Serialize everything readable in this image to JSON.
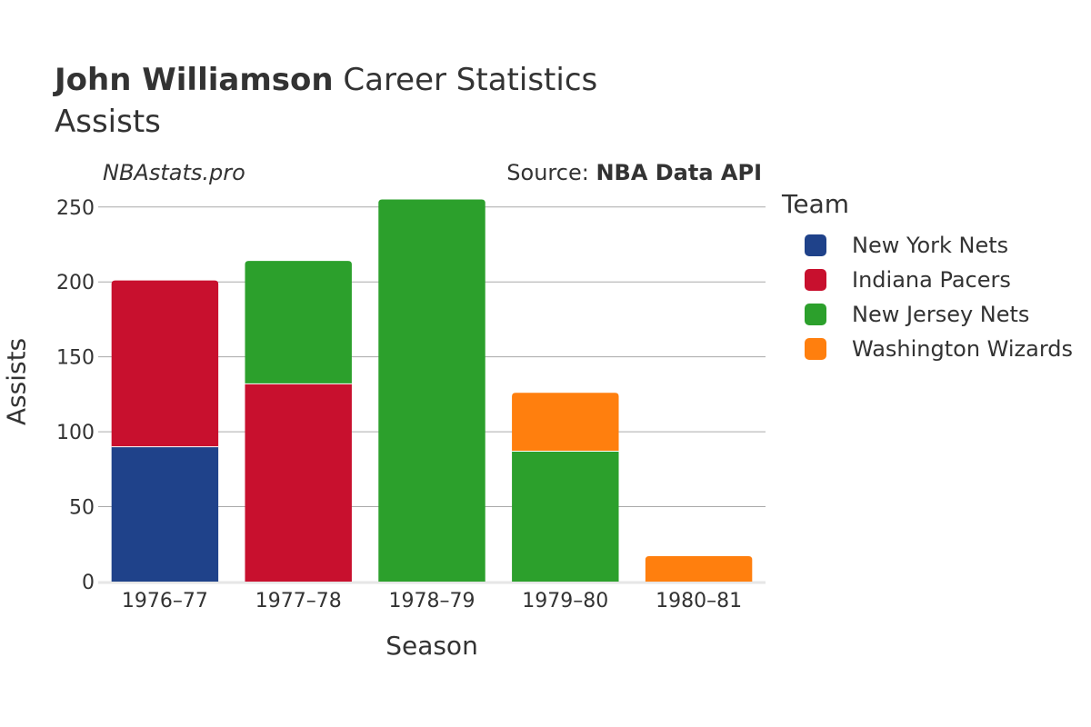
{
  "header": {
    "title_bold": "John Williamson",
    "title_rest": " Career Statistics",
    "subtitle": "Assists"
  },
  "watermark": "NBAstats.pro",
  "source": {
    "prefix": "Source: ",
    "name": "NBA Data API"
  },
  "colors": {
    "New York Nets": "#1f428a",
    "Indiana Pacers": "#c8102e",
    "New Jersey Nets": "#2ca02c",
    "Washington Wizards": "#ff7f0e"
  },
  "chart_data": {
    "type": "bar",
    "stacked": true,
    "title": "John Williamson Career Statistics",
    "subtitle": "Assists",
    "xlabel": "Season",
    "ylabel": "Assists",
    "ylim": [
      0,
      262
    ],
    "yticks": [
      0,
      50,
      100,
      150,
      200,
      250
    ],
    "categories": [
      "1976–77",
      "1977–78",
      "1978–79",
      "1979–80",
      "1980–81"
    ],
    "series": [
      {
        "name": "New York Nets",
        "values": [
          90,
          0,
          0,
          0,
          0
        ]
      },
      {
        "name": "Indiana Pacers",
        "values": [
          111,
          132,
          0,
          0,
          0
        ]
      },
      {
        "name": "New Jersey Nets",
        "values": [
          0,
          82,
          255,
          87,
          0
        ]
      },
      {
        "name": "Washington Wizards",
        "values": [
          0,
          0,
          0,
          39,
          17
        ]
      }
    ],
    "legend_title": "Team",
    "legend": [
      "New York Nets",
      "Indiana Pacers",
      "New Jersey Nets",
      "Washington Wizards"
    ]
  }
}
